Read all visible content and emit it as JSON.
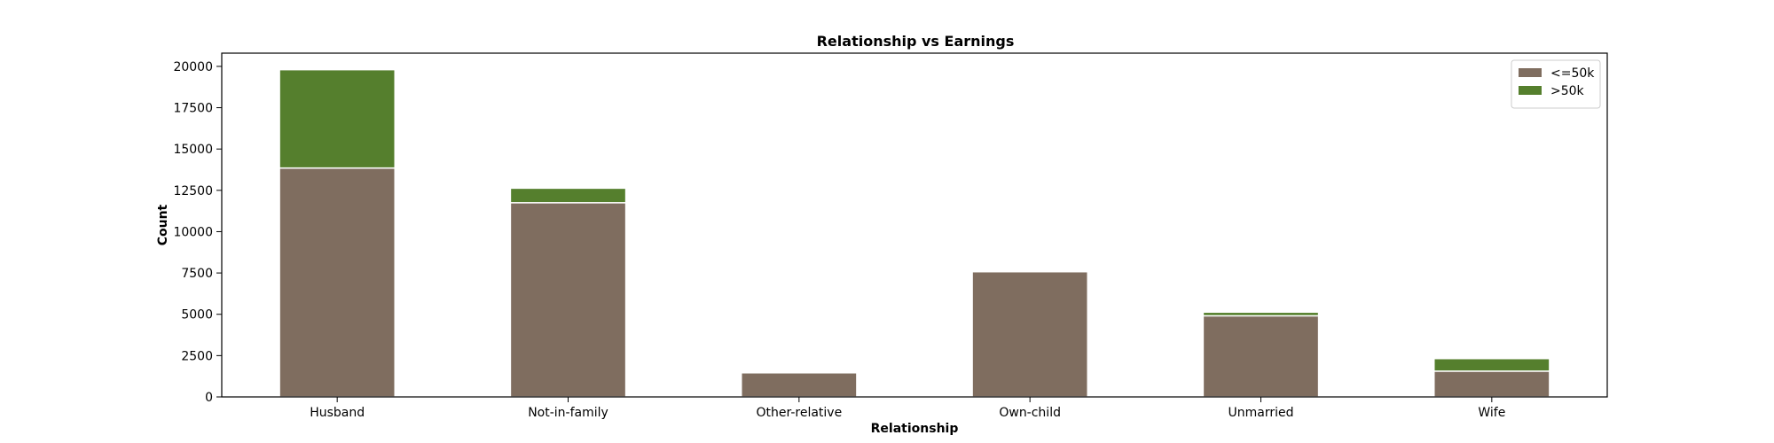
{
  "chart_data": {
    "type": "bar",
    "stacked": true,
    "title": "Relationship vs Earnings",
    "xlabel": "Relationship",
    "ylabel": "Count",
    "categories": [
      "Husband",
      "Not-in-family",
      "Other-relative",
      "Own-child",
      "Unmarried",
      "Wife"
    ],
    "series": [
      {
        "name": "<=50k",
        "color": "#7f6d5f",
        "values": [
          13850,
          11750,
          1460,
          7580,
          4910,
          1560
        ]
      },
      {
        "name": ">50k",
        "color": "#557f2d",
        "values": [
          5950,
          880,
          40,
          70,
          220,
          760
        ]
      }
    ],
    "ylim": [
      0,
      20800
    ],
    "yticks": [
      0,
      2500,
      5000,
      7500,
      10000,
      12500,
      15000,
      17500,
      20000
    ],
    "ytick_labels": [
      "0",
      "2500",
      "5000",
      "7500",
      "10000",
      "12500",
      "15000",
      "17500",
      "20000"
    ],
    "legend_position": "top-right",
    "grid": false
  }
}
